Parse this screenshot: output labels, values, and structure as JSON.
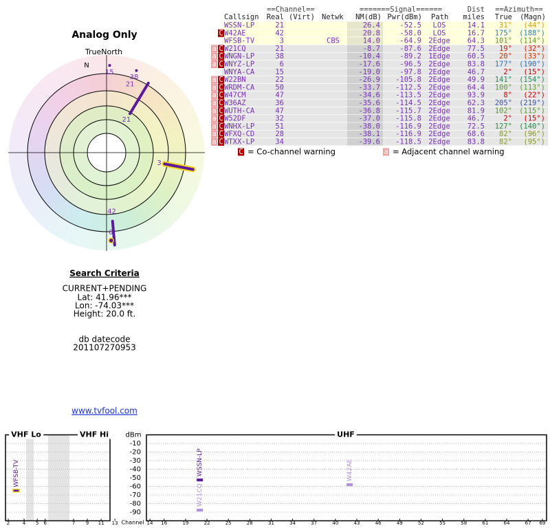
{
  "left": {
    "title": "Analog Only",
    "north_label": "TrueNorth",
    "north_marker": "N",
    "criteria_title": "Search Criteria",
    "criteria": [
      "CURRENT+PENDING",
      "Lat: 41.96***",
      "Lon: -74.03***",
      "Height: 20.0 ft."
    ],
    "datecode_label": "db datecode",
    "datecode": "201107270953",
    "link": "www.tvfool.com"
  },
  "table": {
    "group_headers": [
      "==Channel==",
      "=======Signal======",
      "Dist",
      "==Azimuth=="
    ],
    "headers": [
      "Callsign",
      "Real",
      "(Virt)",
      "Netwk",
      "NM(dB)",
      "Pwr(dBm)",
      "Path",
      "miles",
      "True",
      "(Magn)"
    ],
    "rows": [
      {
        "callsign": "WSSN-LP",
        "real": 21,
        "nm": "26.4",
        "pwr": {
          "value": -52.5,
          "label": "-52.5"
        },
        "path": "LOS",
        "dist": "14.1",
        "az_true": {
          "value": 31,
          "label": "31°"
        },
        "az_magn": "(44°)",
        "az_color": "#d4a017",
        "highlight": true
      },
      {
        "callsign": "W42AE",
        "real": 42,
        "nm": "20.8",
        "pwr": {
          "value": -58.0,
          "label": "-58.0"
        },
        "path": "LOS",
        "dist": "16.7",
        "az_true": {
          "value": 175,
          "label": "175°"
        },
        "az_magn": "(188°)",
        "az_color": "#2f7fb0",
        "highlight": true,
        "warn_co": "C"
      },
      {
        "callsign": "WFSB-TV",
        "real": 3,
        "netwk": "CBS",
        "nm": "14.0",
        "pwr": {
          "value": -64.9,
          "label": "-64.9"
        },
        "path": "2Edge",
        "dist": "64.3",
        "az_true": {
          "value": 101,
          "label": "101°"
        },
        "az_magn": "(114°)",
        "az_color": "#5a9a2a",
        "highlight": true
      },
      {
        "callsign": "W21CQ",
        "real": 21,
        "nm": "-8.7",
        "pwr": {
          "value": -87.6,
          "label": "-87.6"
        },
        "path": "2Edge",
        "dist": "77.5",
        "az_true": {
          "value": 19,
          "label": "19°"
        },
        "az_magn": "(32°)",
        "az_color": "#cc2200",
        "highlight": false,
        "warn_adj": "a",
        "warn_co": "C"
      },
      {
        "callsign": "WNGN-LP",
        "real": 38,
        "nm": "-10.4",
        "pwr": {
          "value": -89.2,
          "label": "-89.2"
        },
        "path": "1Edge",
        "dist": "60.5",
        "az_true": {
          "value": 20,
          "label": "20°"
        },
        "az_magn": "(33°)",
        "az_color": "#cc3300",
        "highlight": false,
        "warn_adj": "a",
        "warn_co": "C"
      },
      {
        "callsign": "WNYZ-LP",
        "real": 6,
        "nm": "-17.6",
        "pwr": {
          "value": -96.5,
          "label": "-96.5"
        },
        "path": "2Edge",
        "dist": "83.8",
        "az_true": {
          "value": 177,
          "label": "177°"
        },
        "az_magn": "(190°)",
        "az_color": "#2f6fb0",
        "highlight": false,
        "warn_adj": "a",
        "warn_co": "C"
      },
      {
        "callsign": "WNYA-CA",
        "real": 15,
        "nm": "-19.0",
        "pwr": {
          "value": -97.8,
          "label": "-97.8"
        },
        "path": "2Edge",
        "dist": "46.7",
        "az_true": {
          "value": 2,
          "label": "2°"
        },
        "az_magn": "(15°)",
        "az_color": "#cc0000",
        "highlight": false
      },
      {
        "callsign": "W22BN",
        "real": 22,
        "nm": "-26.9",
        "pwr": {
          "value": -105.8,
          "label": "-105.8"
        },
        "path": "2Edge",
        "dist": "49.9",
        "az_true": {
          "value": 141,
          "label": "141°"
        },
        "az_magn": "(154°)",
        "az_color": "#2a8a5a",
        "highlight": false,
        "warn_adj": "a",
        "warn_co": "C"
      },
      {
        "callsign": "WRDM-CA",
        "real": 50,
        "nm": "-33.7",
        "pwr": {
          "value": -112.5,
          "label": "-112.5"
        },
        "path": "2Edge",
        "dist": "64.4",
        "az_true": {
          "value": 100,
          "label": "100°"
        },
        "az_magn": "(113°)",
        "az_color": "#5a9a2a",
        "highlight": false,
        "warn_adj": "a",
        "warn_co": "C"
      },
      {
        "callsign": "W47CM",
        "real": 47,
        "nm": "-34.6",
        "pwr": {
          "value": -113.5,
          "label": "-113.5"
        },
        "path": "2Edge",
        "dist": "93.9",
        "az_true": {
          "value": 8,
          "label": "8°"
        },
        "az_magn": "(22°)",
        "az_color": "#cc0000",
        "highlight": false,
        "warn_adj": "a",
        "warn_co": "C"
      },
      {
        "callsign": "W36AZ",
        "real": 36,
        "nm": "-35.6",
        "pwr": {
          "value": -114.5,
          "label": "-114.5"
        },
        "path": "2Edge",
        "dist": "62.3",
        "az_true": {
          "value": 205,
          "label": "205°"
        },
        "az_magn": "(219°)",
        "az_color": "#3a50b0",
        "highlight": false,
        "warn_adj": "a",
        "warn_co": "C"
      },
      {
        "callsign": "WUTH-CA",
        "real": 47,
        "nm": "-36.8",
        "pwr": {
          "value": -115.7,
          "label": "-115.7"
        },
        "path": "2Edge",
        "dist": "81.9",
        "az_true": {
          "value": 102,
          "label": "102°"
        },
        "az_magn": "(115°)",
        "az_color": "#5a9a2a",
        "highlight": false,
        "warn_adj": "a",
        "warn_co": "C"
      },
      {
        "callsign": "W52DF",
        "real": 32,
        "nm": "-37.0",
        "pwr": {
          "value": -115.8,
          "label": "-115.8"
        },
        "path": "2Edge",
        "dist": "46.7",
        "az_true": {
          "value": 2,
          "label": "2°"
        },
        "az_magn": "(15°)",
        "az_color": "#cc0000",
        "highlight": false,
        "warn_adj": "a",
        "warn_co": "C"
      },
      {
        "callsign": "WNHX-LP",
        "real": 51,
        "nm": "-38.0",
        "pwr": {
          "value": -116.9,
          "label": "-116.9"
        },
        "path": "2Edge",
        "dist": "72.5",
        "az_true": {
          "value": 127,
          "label": "127°"
        },
        "az_magn": "(140°)",
        "az_color": "#2a8a4a",
        "highlight": false,
        "warn_adj": "a",
        "warn_co": "C"
      },
      {
        "callsign": "WFXQ-CD",
        "real": 28,
        "nm": "-38.1",
        "pwr": {
          "value": -116.9,
          "label": "-116.9"
        },
        "path": "2Edge",
        "dist": "68.6",
        "az_true": {
          "value": 82,
          "label": "82°"
        },
        "az_magn": "(96°)",
        "az_color": "#8a9a20",
        "highlight": false,
        "warn_adj": "a",
        "warn_co": "C"
      },
      {
        "callsign": "WTXX-LP",
        "real": 34,
        "nm": "-39.6",
        "pwr": {
          "value": -118.5,
          "label": "-118.5"
        },
        "path": "2Edge",
        "dist": "83.8",
        "az_true": {
          "value": 82,
          "label": "82°"
        },
        "az_magn": "(95°)",
        "az_color": "#8a9a20",
        "highlight": false,
        "warn_adj": "a",
        "warn_co": "C"
      }
    ]
  },
  "legend": {
    "co_icon": "C",
    "co_text": "= Co-channel warning",
    "adj_icon": "a",
    "adj_text": "= Adjacent channel warning"
  },
  "spectrum": {
    "panels": [
      "VHF Lo",
      "VHF Hi",
      "UHF"
    ],
    "ylabel": "dBm",
    "ylim": [
      -100,
      0
    ],
    "yticks": [
      -10,
      -20,
      -30,
      -40,
      -50,
      -60,
      -70,
      -80,
      -90
    ],
    "xlabel": "Channel",
    "vhf_ticks": [
      2,
      4,
      5,
      6,
      7,
      9,
      11,
      13
    ],
    "uhf_ticks": [
      14,
      16,
      19,
      22,
      25,
      28,
      31,
      34,
      37,
      40,
      43,
      46,
      49,
      52,
      55,
      58,
      61,
      64,
      67,
      69
    ]
  }
}
